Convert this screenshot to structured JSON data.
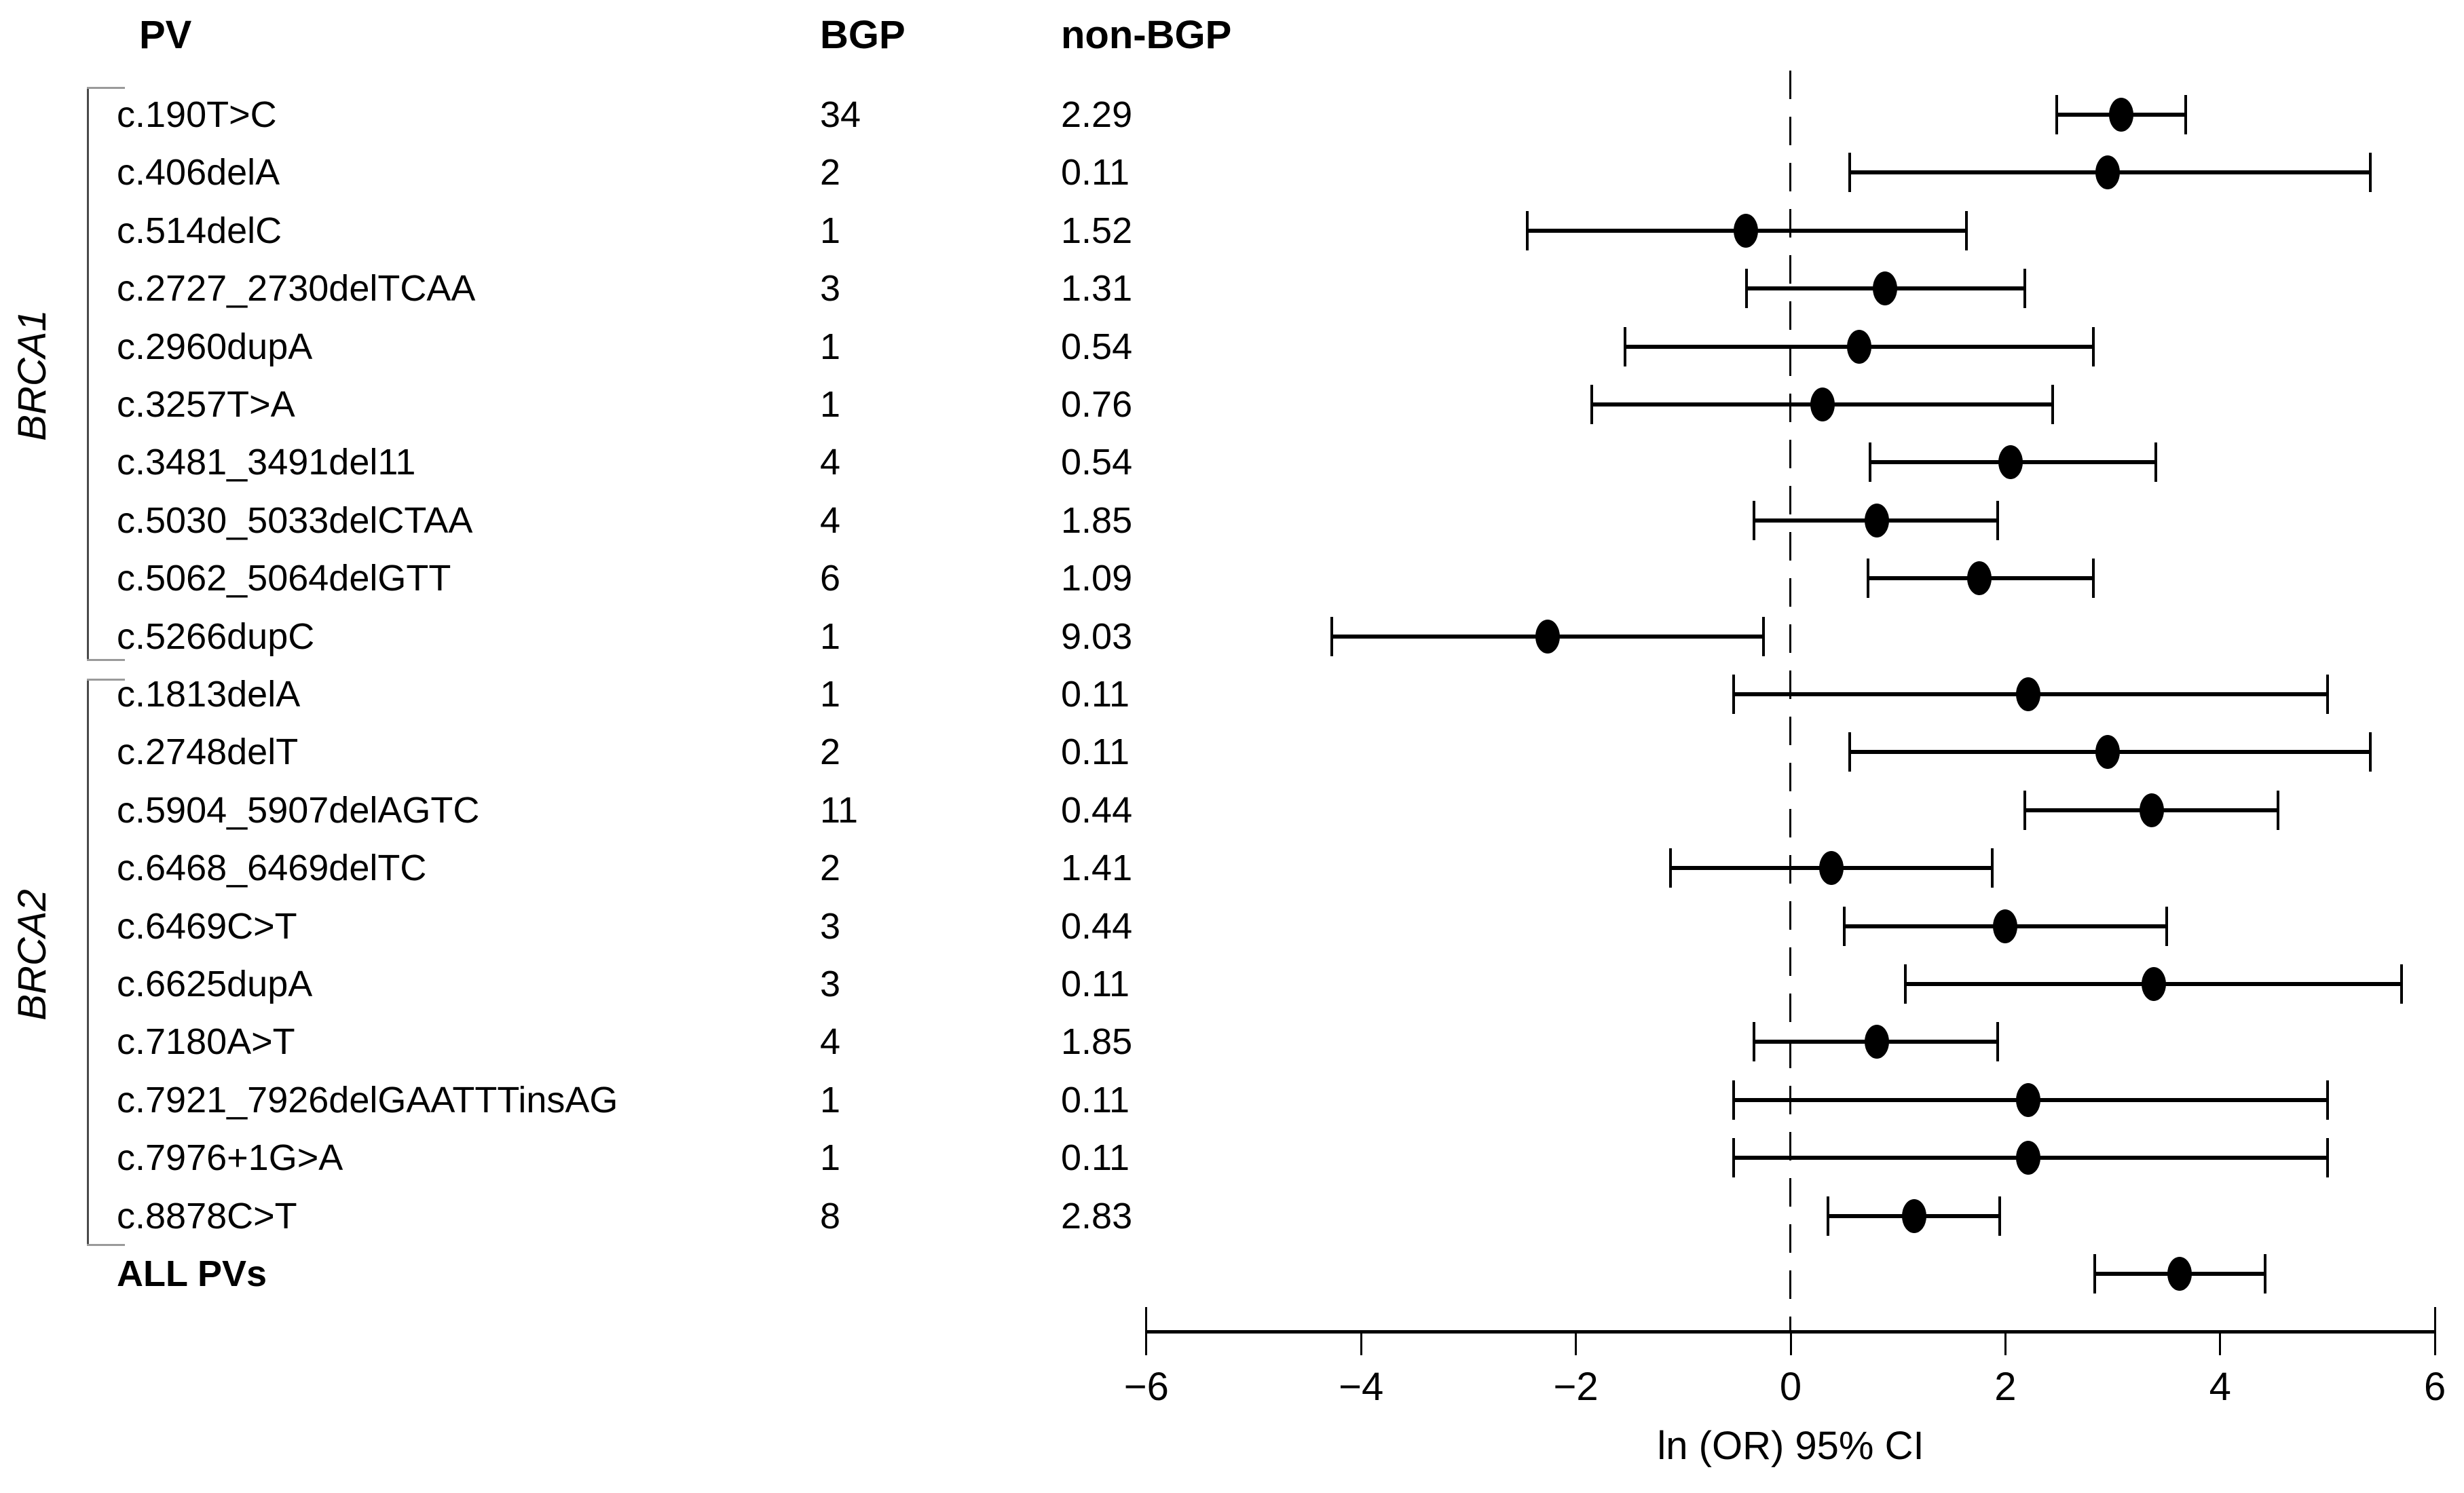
{
  "header": {
    "pv": "PV",
    "bgp": "BGP",
    "non_bgp": "non-BGP"
  },
  "groups": [
    {
      "label": "BRCA1",
      "start": 1,
      "end": 10
    },
    {
      "label": "BRCA2",
      "start": 11,
      "end": 20
    }
  ],
  "colors": {
    "foreground": "#000000",
    "background": "#ffffff",
    "bracket": "#9a9a9a"
  },
  "chart_data": {
    "type": "scatter",
    "subtype": "forest-plot",
    "title": "",
    "xlabel": "ln (OR) 95% CI",
    "xlim": [
      -6,
      6
    ],
    "xticks": [
      -6,
      -4,
      -2,
      0,
      2,
      4,
      6
    ],
    "tick_labels": [
      "−6",
      "−4",
      "−2",
      "0",
      "2",
      "4",
      "6"
    ],
    "reference_line_x": 0,
    "reference_line_style": "dashed",
    "grid": false,
    "marker": "filled-ellipse",
    "points": [
      {
        "label": "c.190T>C",
        "bgp": "34",
        "non_bgp": "2.29",
        "est": 3.08,
        "lo": 2.48,
        "hi": 3.68,
        "bold": false
      },
      {
        "label": "c.406delA",
        "bgp": "2",
        "non_bgp": "0.11",
        "est": 2.95,
        "lo": 0.55,
        "hi": 5.4,
        "bold": false
      },
      {
        "label": "c.514delC",
        "bgp": "1",
        "non_bgp": "1.52",
        "est": -0.42,
        "lo": -2.45,
        "hi": 1.64,
        "bold": false
      },
      {
        "label": "c.2727_2730delTCAA",
        "bgp": "3",
        "non_bgp": "1.31",
        "est": 0.88,
        "lo": -0.41,
        "hi": 2.18,
        "bold": false
      },
      {
        "label": "c.2960dupA",
        "bgp": "1",
        "non_bgp": "0.54",
        "est": 0.64,
        "lo": -1.54,
        "hi": 2.82,
        "bold": false
      },
      {
        "label": "c.3257T>A",
        "bgp": "1",
        "non_bgp": "0.76",
        "est": 0.3,
        "lo": -1.85,
        "hi": 2.44,
        "bold": false
      },
      {
        "label": "c.3481_3491del11",
        "bgp": "4",
        "non_bgp": "0.54",
        "est": 2.05,
        "lo": 0.74,
        "hi": 3.4,
        "bold": false
      },
      {
        "label": "c.5030_5033delCTAA",
        "bgp": "4",
        "non_bgp": "1.85",
        "est": 0.8,
        "lo": -0.34,
        "hi": 1.93,
        "bold": false
      },
      {
        "label": "c.5062_5064delGTT",
        "bgp": "6",
        "non_bgp": "1.09",
        "est": 1.76,
        "lo": 0.72,
        "hi": 2.82,
        "bold": false
      },
      {
        "label": "c.5266dupC",
        "bgp": "1",
        "non_bgp": "9.03",
        "est": -2.26,
        "lo": -4.27,
        "hi": -0.25,
        "bold": false
      },
      {
        "label": "c.1813delA",
        "bgp": "1",
        "non_bgp": "0.11",
        "est": 2.21,
        "lo": -0.53,
        "hi": 5.0,
        "bold": false
      },
      {
        "label": "c.2748delT",
        "bgp": "2",
        "non_bgp": "0.11",
        "est": 2.95,
        "lo": 0.55,
        "hi": 5.4,
        "bold": false
      },
      {
        "label": "c.5904_5907delAGTC",
        "bgp": "11",
        "non_bgp": "0.44",
        "est": 3.36,
        "lo": 2.18,
        "hi": 4.54,
        "bold": false
      },
      {
        "label": "c.6468_6469delTC",
        "bgp": "2",
        "non_bgp": "1.41",
        "est": 0.38,
        "lo": -1.12,
        "hi": 1.88,
        "bold": false
      },
      {
        "label": "c.6469C>T",
        "bgp": "3",
        "non_bgp": "0.44",
        "est": 2.0,
        "lo": 0.5,
        "hi": 3.5,
        "bold": false
      },
      {
        "label": "c.6625dupA",
        "bgp": "3",
        "non_bgp": "0.11",
        "est": 3.38,
        "lo": 1.07,
        "hi": 5.69,
        "bold": false
      },
      {
        "label": "c.7180A>T",
        "bgp": "4",
        "non_bgp": "1.85",
        "est": 0.8,
        "lo": -0.34,
        "hi": 1.93,
        "bold": false
      },
      {
        "label": "c.7921_7926delGAATTTinsAG",
        "bgp": "1",
        "non_bgp": "0.11",
        "est": 2.21,
        "lo": -0.53,
        "hi": 5.0,
        "bold": false
      },
      {
        "label": "c.7976+1G>A",
        "bgp": "1",
        "non_bgp": "0.11",
        "est": 2.21,
        "lo": -0.53,
        "hi": 5.0,
        "bold": false
      },
      {
        "label": "c.8878C>T",
        "bgp": "8",
        "non_bgp": "2.83",
        "est": 1.15,
        "lo": 0.35,
        "hi": 1.95,
        "bold": false
      },
      {
        "label": "ALL PVs",
        "bgp": "",
        "non_bgp": "",
        "est": 3.62,
        "lo": 2.83,
        "hi": 4.42,
        "bold": true
      }
    ]
  }
}
